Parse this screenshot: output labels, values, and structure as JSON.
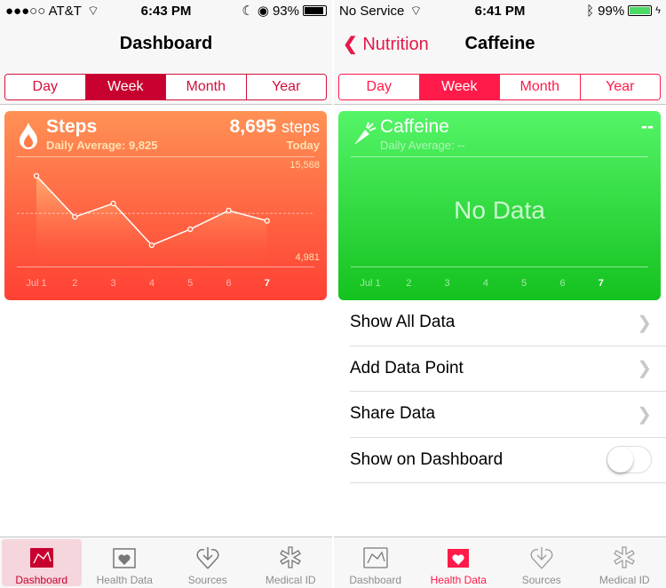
{
  "left": {
    "status": {
      "carrier": "●●●○○ AT&T",
      "time": "6:43 PM",
      "battery": "93%",
      "battery_level": 0.93
    },
    "title": "Dashboard",
    "segments": [
      "Day",
      "Week",
      "Month",
      "Year"
    ],
    "selected_segment": "Week",
    "card": {
      "title": "Steps",
      "subtitle": "Daily Average: 9,825",
      "value": "8,695",
      "unit": "steps",
      "period": "Today",
      "ymax_label": "15,568",
      "ymin_label": "4,981",
      "color_top": "#ff9155",
      "color_bottom": "#ff4034"
    },
    "chart_data": {
      "type": "line",
      "categories": [
        "Jul 1",
        "2",
        "3",
        "4",
        "5",
        "6",
        "7"
      ],
      "values": [
        15568,
        9300,
        11350,
        4981,
        7420,
        10270,
        8695
      ],
      "ylim": [
        4981,
        15568
      ],
      "average": 9825
    },
    "tabs": [
      "Dashboard",
      "Health Data",
      "Sources",
      "Medical ID"
    ],
    "active_tab": "Dashboard"
  },
  "right": {
    "status": {
      "carrier": "No Service",
      "time": "6:41 PM",
      "battery": "99%",
      "battery_level": 0.99
    },
    "back": "Nutrition",
    "title": "Caffeine",
    "segments": [
      "Day",
      "Week",
      "Month",
      "Year"
    ],
    "selected_segment": "Week",
    "card": {
      "title": "Caffeine",
      "subtitle": "Daily Average: --",
      "value": "--",
      "empty": "No Data",
      "color": "#2ed83f"
    },
    "x_labels": [
      "Jul 1",
      "2",
      "3",
      "4",
      "5",
      "6",
      "7"
    ],
    "rows": [
      "Show All Data",
      "Add Data Point",
      "Share Data",
      "Show on Dashboard"
    ],
    "show_on_dashboard": false,
    "tabs": [
      "Dashboard",
      "Health Data",
      "Sources",
      "Medical ID"
    ],
    "active_tab": "Health Data"
  }
}
